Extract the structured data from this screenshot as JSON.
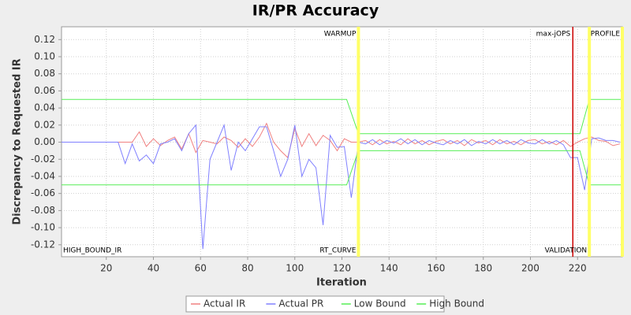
{
  "chart_data": {
    "type": "line",
    "title": "IR/PR Accuracy",
    "x_label": "Iteration",
    "y_label": "Discrepancy to Requested IR",
    "xlim": [
      1,
      239
    ],
    "ylim": [
      -0.134,
      0.135
    ],
    "xticks": [
      20,
      40,
      60,
      80,
      100,
      120,
      140,
      160,
      180,
      200,
      220
    ],
    "yticks": [
      {
        "value": -0.12,
        "label": "-0.12"
      },
      {
        "value": -0.1,
        "label": "-0.10"
      },
      {
        "value": -0.08,
        "label": "-0.08"
      },
      {
        "value": -0.06,
        "label": "-0.06"
      },
      {
        "value": -0.04,
        "label": "-0.04"
      },
      {
        "value": -0.02,
        "label": "-0.02"
      },
      {
        "value": 0,
        "label": "0.00"
      },
      0.02,
      0.04,
      0.06,
      0.08,
      {
        "value": 0.1,
        "label": "0.10"
      },
      0.12
    ],
    "grid": true,
    "legend": "bottom",
    "x": [
      1,
      4,
      7,
      10,
      13,
      16,
      19,
      22,
      25,
      28,
      31,
      34,
      37,
      40,
      43,
      46,
      49,
      52,
      55,
      58,
      61,
      64,
      67,
      70,
      73,
      76,
      79,
      82,
      85,
      88,
      91,
      94,
      97,
      100,
      103,
      106,
      109,
      112,
      115,
      118,
      121,
      124,
      127,
      130,
      133,
      136,
      139,
      142,
      145,
      148,
      151,
      154,
      157,
      160,
      163,
      166,
      169,
      172,
      175,
      178,
      181,
      184,
      187,
      190,
      193,
      196,
      199,
      202,
      205,
      208,
      211,
      214,
      217,
      220,
      223,
      226,
      229,
      232,
      235,
      238
    ],
    "series": [
      {
        "name": "Actual IR",
        "color": "#f08080",
        "values": [
          0,
          0,
          0,
          0,
          0,
          0,
          0,
          0,
          0,
          0,
          0,
          0.012,
          -0.005,
          0.004,
          -0.004,
          0.002,
          0.006,
          -0.008,
          0.01,
          -0.012,
          0.002,
          0,
          -0.002,
          0.006,
          0.002,
          -0.006,
          0.004,
          -0.005,
          0.006,
          0.022,
          0,
          -0.01,
          -0.018,
          0.016,
          -0.005,
          0.01,
          -0.004,
          0.008,
          0.002,
          -0.01,
          0.004,
          0,
          0,
          0.002,
          -0.003,
          0.003,
          -0.002,
          0.001,
          -0.003,
          0.004,
          -0.002,
          0.002,
          -0.003,
          0.001,
          0.003,
          -0.002,
          0.002,
          -0.004,
          0.003,
          -0.001,
          0.002,
          -0.003,
          0.003,
          -0.002,
          0.001,
          -0.003,
          0.002,
          0.003,
          -0.002,
          0.001,
          -0.003,
          0.002,
          -0.005,
          0,
          0.004,
          0.006,
          0.002,
          0.001,
          -0.004,
          -0.002
        ]
      },
      {
        "name": "Actual PR",
        "color": "#8080ff",
        "values": [
          0,
          0,
          0,
          0,
          0,
          0,
          0,
          0,
          0,
          -0.025,
          -0.002,
          -0.022,
          -0.015,
          -0.025,
          -0.002,
          0,
          0.004,
          -0.01,
          0.01,
          0.02,
          -0.125,
          -0.02,
          0,
          0.02,
          -0.033,
          0,
          -0.01,
          0.004,
          0.018,
          0.018,
          -0.01,
          -0.04,
          -0.02,
          0.02,
          -0.04,
          -0.02,
          -0.03,
          -0.097,
          0.008,
          -0.006,
          -0.005,
          -0.065,
          0,
          -0.002,
          0.003,
          -0.003,
          0.002,
          -0.001,
          0.004,
          -0.002,
          0.003,
          -0.003,
          0.002,
          -0.001,
          -0.003,
          0.002,
          -0.002,
          0.003,
          -0.004,
          0.001,
          -0.002,
          0.003,
          -0.002,
          0.002,
          -0.003,
          0.003,
          -0.001,
          -0.002,
          0.003,
          -0.002,
          0.002,
          -0.003,
          -0.018,
          -0.018,
          -0.056,
          0.004,
          0.005,
          0.002,
          0.002,
          0
        ]
      },
      {
        "name": "Low Bound",
        "color": "#55ee55",
        "x": [
          1,
          122,
          127,
          221,
          225,
          239
        ],
        "values": [
          -0.05,
          -0.05,
          -0.01,
          -0.01,
          -0.05,
          -0.05
        ]
      },
      {
        "name": "High Bound",
        "color": "#55ee55",
        "x": [
          1,
          122,
          127,
          221,
          225,
          239
        ],
        "values": [
          0.05,
          0.05,
          0.01,
          0.01,
          0.05,
          0.05
        ]
      }
    ],
    "marker_lines": [
      {
        "x": 127,
        "color": "#ffff66"
      },
      {
        "x": 218,
        "color": "#cc0000"
      },
      {
        "x": 225,
        "color": "#ffff66"
      },
      {
        "x": 239,
        "color": "#ffff66"
      }
    ],
    "marker_labels": [
      {
        "text": "WARMUP",
        "x": 127,
        "position": "top"
      },
      {
        "text": "max-jOPS",
        "x": 218,
        "position": "top"
      },
      {
        "text": "PROFILE",
        "x": 239,
        "position": "top"
      },
      {
        "text": "HIGH_BOUND_IR",
        "x": 1,
        "position": "bottom"
      },
      {
        "text": "RT_CURVE",
        "x": 127,
        "position": "bottom"
      },
      {
        "text": "VALIDATION",
        "x": 225,
        "position": "bottom"
      }
    ]
  }
}
